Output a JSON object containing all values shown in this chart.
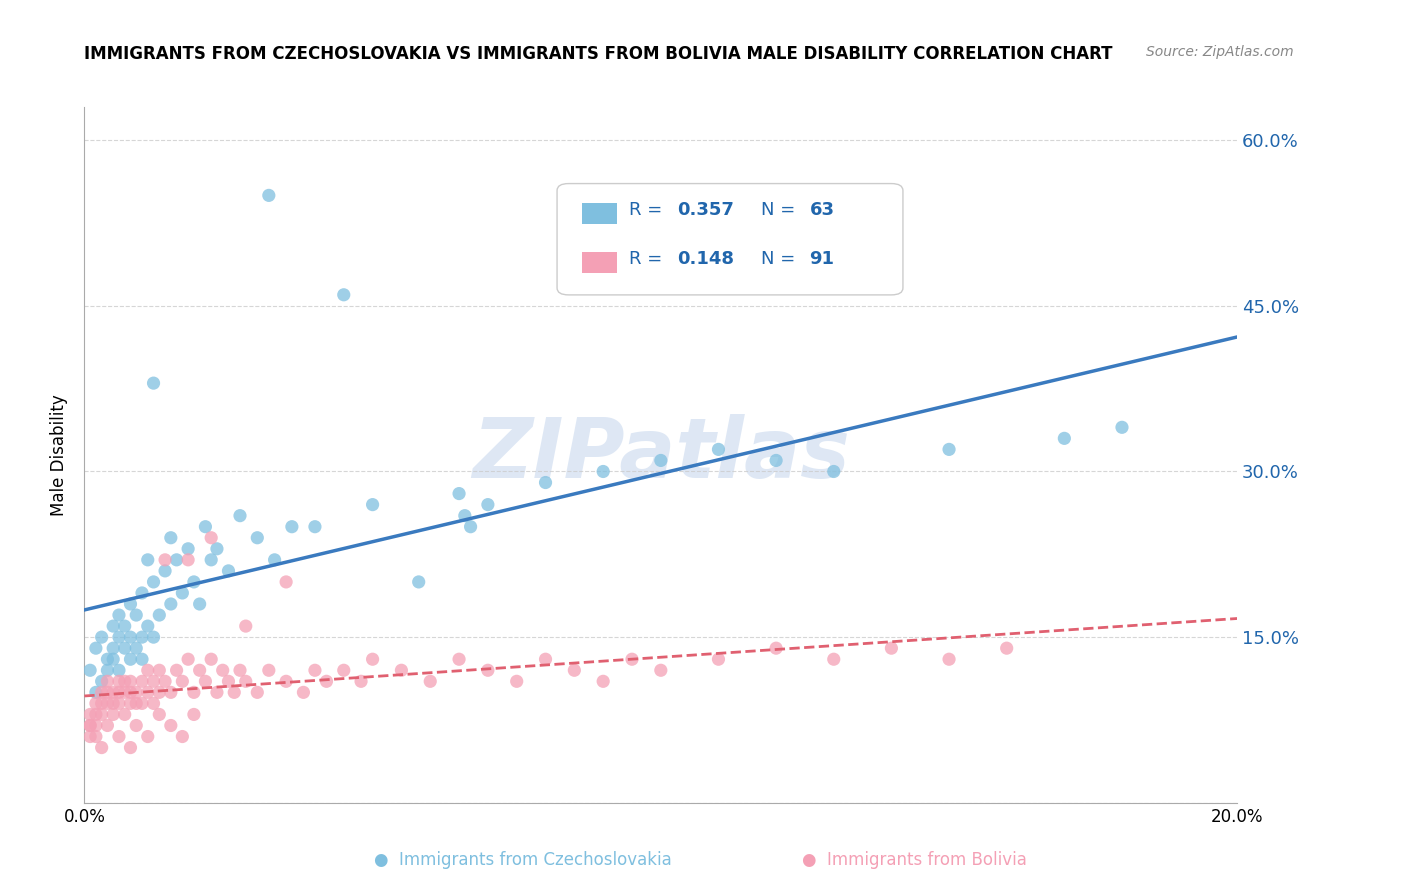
{
  "title": "IMMIGRANTS FROM CZECHOSLOVAKIA VS IMMIGRANTS FROM BOLIVIA MALE DISABILITY CORRELATION CHART",
  "source": "Source: ZipAtlas.com",
  "ylabel": "Male Disability",
  "xlim": [
    0.0,
    0.2
  ],
  "ylim": [
    0.0,
    0.63
  ],
  "yticks": [
    0.0,
    0.15,
    0.3,
    0.45,
    0.6
  ],
  "ytick_labels": [
    "",
    "15.0%",
    "30.0%",
    "45.0%",
    "60.0%"
  ],
  "xticks": [
    0.0,
    0.04,
    0.08,
    0.12,
    0.16,
    0.2
  ],
  "xtick_labels": [
    "0.0%",
    "",
    "",
    "",
    "",
    "20.0%"
  ],
  "legend_R1": "0.357",
  "legend_N1": "63",
  "legend_R2": "0.148",
  "legend_N2": "91",
  "color_blue": "#7fbfdf",
  "color_pink": "#f4a0b5",
  "color_blue_line": "#3a7abf",
  "color_pink_line": "#e06070",
  "color_blue_text": "#2166ac",
  "watermark": "ZIPatlas",
  "background_color": "#ffffff",
  "grid_color": "#cccccc",
  "czech_x": [
    0.001,
    0.002,
    0.002,
    0.003,
    0.003,
    0.004,
    0.004,
    0.005,
    0.005,
    0.005,
    0.006,
    0.006,
    0.006,
    0.007,
    0.007,
    0.008,
    0.008,
    0.008,
    0.009,
    0.009,
    0.01,
    0.01,
    0.01,
    0.011,
    0.011,
    0.012,
    0.012,
    0.013,
    0.014,
    0.015,
    0.015,
    0.016,
    0.017,
    0.018,
    0.019,
    0.02,
    0.021,
    0.022,
    0.023,
    0.025,
    0.027,
    0.03,
    0.033,
    0.036,
    0.04,
    0.05,
    0.058,
    0.065,
    0.066,
    0.067,
    0.07,
    0.08,
    0.09,
    0.1,
    0.11,
    0.12,
    0.13,
    0.15,
    0.17,
    0.18,
    0.032,
    0.045,
    0.012
  ],
  "czech_y": [
    0.12,
    0.1,
    0.14,
    0.11,
    0.15,
    0.13,
    0.12,
    0.14,
    0.13,
    0.16,
    0.15,
    0.12,
    0.17,
    0.14,
    0.16,
    0.13,
    0.15,
    0.18,
    0.14,
    0.17,
    0.15,
    0.13,
    0.19,
    0.16,
    0.22,
    0.15,
    0.2,
    0.17,
    0.21,
    0.18,
    0.24,
    0.22,
    0.19,
    0.23,
    0.2,
    0.18,
    0.25,
    0.22,
    0.23,
    0.21,
    0.26,
    0.24,
    0.22,
    0.25,
    0.25,
    0.27,
    0.2,
    0.28,
    0.26,
    0.25,
    0.27,
    0.29,
    0.3,
    0.31,
    0.32,
    0.31,
    0.3,
    0.32,
    0.33,
    0.34,
    0.55,
    0.46,
    0.38
  ],
  "bolivia_x": [
    0.001,
    0.001,
    0.002,
    0.002,
    0.002,
    0.003,
    0.003,
    0.003,
    0.004,
    0.004,
    0.004,
    0.005,
    0.005,
    0.005,
    0.006,
    0.006,
    0.006,
    0.007,
    0.007,
    0.008,
    0.008,
    0.008,
    0.009,
    0.009,
    0.01,
    0.01,
    0.011,
    0.011,
    0.012,
    0.012,
    0.013,
    0.013,
    0.014,
    0.015,
    0.016,
    0.017,
    0.018,
    0.019,
    0.02,
    0.021,
    0.022,
    0.023,
    0.024,
    0.025,
    0.026,
    0.027,
    0.028,
    0.03,
    0.032,
    0.035,
    0.038,
    0.04,
    0.042,
    0.045,
    0.048,
    0.05,
    0.055,
    0.06,
    0.065,
    0.07,
    0.075,
    0.08,
    0.085,
    0.09,
    0.095,
    0.1,
    0.11,
    0.12,
    0.13,
    0.14,
    0.15,
    0.16,
    0.014,
    0.022,
    0.028,
    0.035,
    0.018,
    0.008,
    0.006,
    0.004,
    0.003,
    0.002,
    0.001,
    0.001,
    0.007,
    0.009,
    0.011,
    0.013,
    0.015,
    0.017,
    0.019
  ],
  "bolivia_y": [
    0.08,
    0.07,
    0.09,
    0.08,
    0.07,
    0.1,
    0.09,
    0.08,
    0.11,
    0.1,
    0.09,
    0.08,
    0.1,
    0.09,
    0.11,
    0.1,
    0.09,
    0.1,
    0.11,
    0.09,
    0.1,
    0.11,
    0.09,
    0.1,
    0.11,
    0.09,
    0.1,
    0.12,
    0.09,
    0.11,
    0.1,
    0.12,
    0.11,
    0.1,
    0.12,
    0.11,
    0.13,
    0.1,
    0.12,
    0.11,
    0.13,
    0.1,
    0.12,
    0.11,
    0.1,
    0.12,
    0.11,
    0.1,
    0.12,
    0.11,
    0.1,
    0.12,
    0.11,
    0.12,
    0.11,
    0.13,
    0.12,
    0.11,
    0.13,
    0.12,
    0.11,
    0.13,
    0.12,
    0.11,
    0.13,
    0.12,
    0.13,
    0.14,
    0.13,
    0.14,
    0.13,
    0.14,
    0.22,
    0.24,
    0.16,
    0.2,
    0.22,
    0.05,
    0.06,
    0.07,
    0.05,
    0.06,
    0.06,
    0.07,
    0.08,
    0.07,
    0.06,
    0.08,
    0.07,
    0.06,
    0.08
  ]
}
